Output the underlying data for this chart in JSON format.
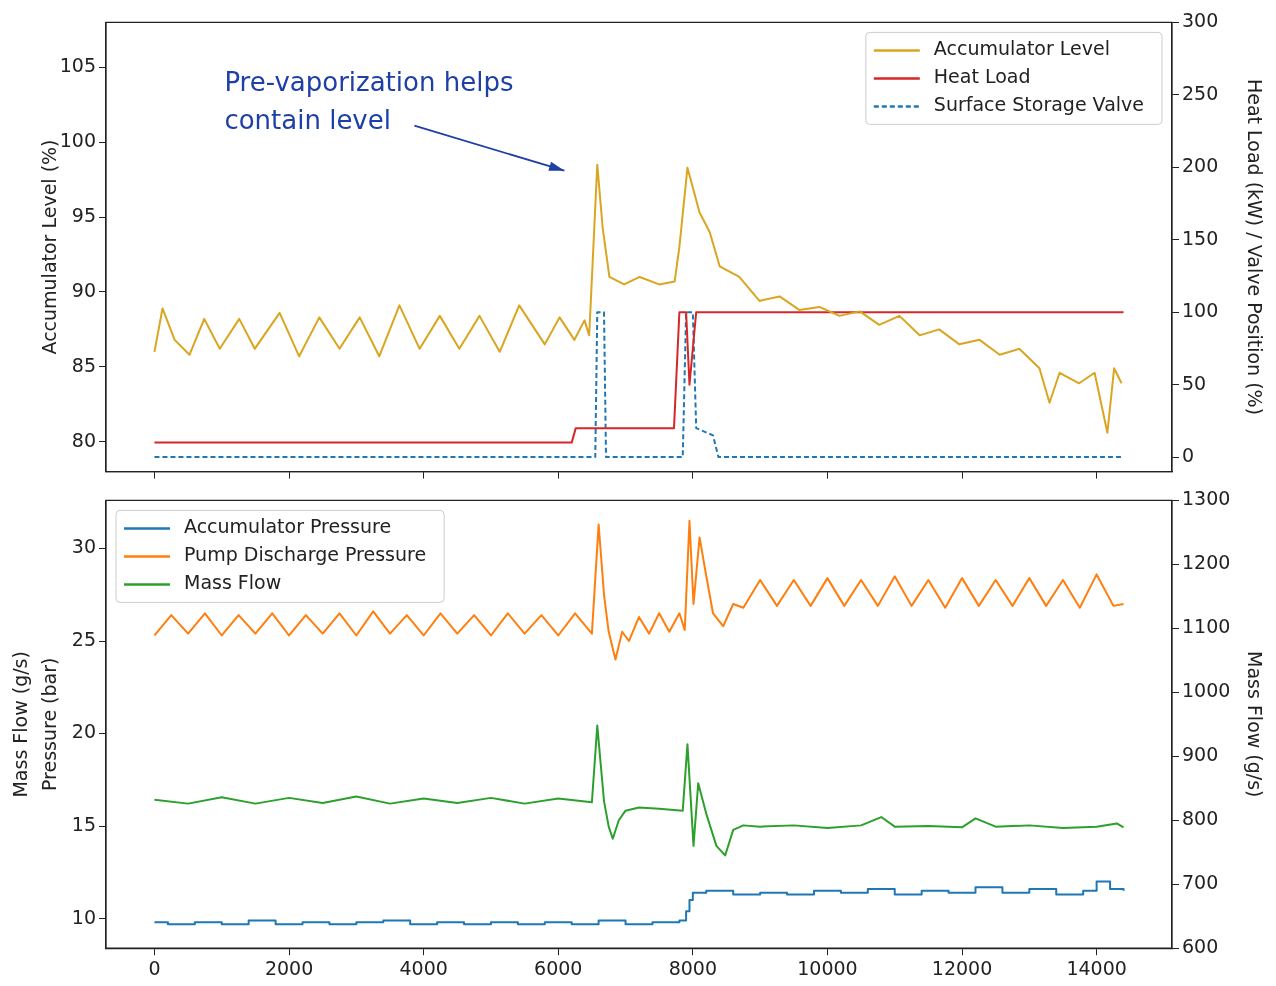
{
  "chart_data": [
    {
      "type": "line",
      "ylabel": "Accumulator Level (%)",
      "y2label": "Heat Load (kW) / Valve Position (%)",
      "xlim": [
        -720,
        15120
      ],
      "xticks": [
        0,
        2000,
        4000,
        6000,
        8000,
        10000,
        12000,
        14000
      ],
      "ylim": [
        78,
        108
      ],
      "yticks": [
        80,
        85,
        90,
        95,
        100,
        105
      ],
      "y2lim": [
        -10,
        300
      ],
      "y2ticks": [
        0,
        50,
        100,
        150,
        200,
        250,
        300
      ],
      "tick_labels": "y",
      "legend": "top right",
      "grid": false,
      "annotations": [
        "Pre-vaporization helps\ncontain level"
      ],
      "series": [
        {
          "name": "Accumulator Level",
          "color": "#daa520",
          "line_style": "solid",
          "x": [
            0,
            120,
            300,
            520,
            740,
            970,
            1260,
            1490,
            1860,
            2150,
            2450,
            2750,
            3050,
            3340,
            3640,
            3940,
            4240,
            4530,
            4830,
            5130,
            5420,
            5800,
            6020,
            6240,
            6390,
            6460,
            6580,
            6660,
            6760,
            6980,
            7210,
            7500,
            7730,
            7800,
            7920,
            8100,
            8250,
            8400,
            8690,
            8990,
            9290,
            9580,
            9880,
            10180,
            10480,
            10770,
            11070,
            11370,
            11660,
            11960,
            12260,
            12560,
            12850,
            13150,
            13300,
            13450,
            13740,
            13970,
            14160,
            14260,
            14370
          ],
          "values": [
            86,
            88.9,
            86.8,
            85.8,
            88.2,
            86.2,
            88.2,
            86.2,
            88.6,
            85.7,
            88.3,
            86.2,
            88.3,
            85.7,
            89.1,
            86.2,
            88.4,
            86.2,
            88.4,
            86,
            89.1,
            86.5,
            88.3,
            86.8,
            88.1,
            87.1,
            98.5,
            94.3,
            91,
            90.5,
            91,
            90.5,
            90.7,
            93,
            98.3,
            95.3,
            94,
            91.7,
            91,
            89.4,
            89.7,
            88.8,
            89,
            88.4,
            88.7,
            87.8,
            88.4,
            87.1,
            87.5,
            86.5,
            86.8,
            85.8,
            86.2,
            84.9,
            82.6,
            84.6,
            83.9,
            84.6,
            80.6,
            84.9,
            83.9
          ]
        },
        {
          "name": "Heat Load",
          "color": "#d62728",
          "line_style": "solid",
          "axis": "y2",
          "x": [
            0,
            6200,
            6260,
            7720,
            7800,
            7900,
            7950,
            8050,
            14400
          ],
          "values": [
            10,
            10,
            20,
            20,
            100,
            100,
            50,
            100,
            100
          ]
        },
        {
          "name": "Surface Storage Valve",
          "color": "#1f77b4",
          "line_style": "dashed",
          "axis": "y2",
          "x": [
            0,
            6550,
            6580,
            6680,
            6710,
            7850,
            7900,
            8000,
            8050,
            8300,
            8380,
            14400
          ],
          "values": [
            0,
            0,
            100,
            100,
            0,
            0,
            100,
            100,
            20,
            15,
            0,
            0
          ]
        }
      ]
    },
    {
      "type": "line",
      "ylabel": "Pressure (bar)",
      "y2label": "Mass Flow (g/s)",
      "y3label": "Mass Flow (g/s)",
      "xlim": [
        -720,
        15120
      ],
      "xticks": [
        0,
        2000,
        4000,
        6000,
        8000,
        10000,
        12000,
        14000
      ],
      "ylim": [
        8.4,
        32.6
      ],
      "yticks": [
        10,
        15,
        20,
        25,
        30
      ],
      "y2lim": [
        600,
        1300
      ],
      "y2ticks": [
        600,
        700,
        800,
        900,
        1000,
        1100,
        1200,
        1300
      ],
      "legend": "top left",
      "grid": false,
      "series": [
        {
          "name": "Accumulator Pressure",
          "color": "#1f77b4",
          "type": "step",
          "line_style": "solid",
          "x": [
            0,
            200,
            600,
            1000,
            1400,
            1800,
            2200,
            2600,
            3000,
            3400,
            3800,
            4200,
            4600,
            5000,
            5400,
            5800,
            6200,
            6600,
            7000,
            7400,
            7800,
            7900,
            7950,
            8000,
            8200,
            8600,
            9000,
            9400,
            9800,
            10200,
            10600,
            11000,
            11400,
            11800,
            12200,
            12600,
            13000,
            13400,
            13800,
            14000,
            14200,
            14400
          ],
          "values": [
            9.8,
            9.7,
            9.8,
            9.7,
            9.9,
            9.7,
            9.8,
            9.7,
            9.8,
            9.9,
            9.7,
            9.8,
            9.7,
            9.8,
            9.7,
            9.8,
            9.7,
            9.9,
            9.7,
            9.8,
            9.9,
            10.4,
            11,
            11.4,
            11.5,
            11.3,
            11.4,
            11.3,
            11.5,
            11.4,
            11.6,
            11.3,
            11.5,
            11.4,
            11.7,
            11.4,
            11.6,
            11.3,
            11.5,
            12,
            11.6,
            11.5
          ]
        },
        {
          "name": "Pump Discharge Pressure",
          "color": "#ff7f0e",
          "line_style": "solid",
          "x": [
            0,
            250,
            500,
            750,
            1000,
            1250,
            1500,
            1750,
            2000,
            2250,
            2500,
            2750,
            3000,
            3250,
            3500,
            3750,
            4000,
            4250,
            4500,
            4750,
            5000,
            5250,
            5500,
            5750,
            6000,
            6250,
            6500,
            6600,
            6680,
            6750,
            6850,
            6950,
            7050,
            7200,
            7350,
            7500,
            7650,
            7800,
            7880,
            7950,
            8010,
            8100,
            8200,
            8300,
            8450,
            8600,
            8750,
            9000,
            9250,
            9500,
            9750,
            10000,
            10250,
            10500,
            10750,
            11000,
            11250,
            11500,
            11750,
            12000,
            12250,
            12500,
            12750,
            13000,
            13250,
            13500,
            13750,
            14000,
            14250,
            14400
          ],
          "values": [
            25.3,
            26.4,
            25.4,
            26.5,
            25.3,
            26.4,
            25.4,
            26.5,
            25.3,
            26.4,
            25.4,
            26.5,
            25.3,
            26.6,
            25.4,
            26.4,
            25.3,
            26.5,
            25.4,
            26.4,
            25.3,
            26.5,
            25.4,
            26.4,
            25.3,
            26.5,
            25.4,
            31.3,
            27.5,
            25.5,
            24,
            25.5,
            25,
            26.3,
            25.4,
            26.5,
            25.5,
            26.5,
            25.6,
            31.5,
            27,
            30.6,
            28.5,
            26.5,
            25.8,
            27,
            26.8,
            28.3,
            26.9,
            28.3,
            26.9,
            28.4,
            26.9,
            28.3,
            26.9,
            28.5,
            26.9,
            28.3,
            26.8,
            28.4,
            26.9,
            28.3,
            26.9,
            28.4,
            26.9,
            28.3,
            26.8,
            28.6,
            26.9,
            27
          ]
        },
        {
          "name": "Mass Flow",
          "color": "#2ca02c",
          "line_style": "solid",
          "axis": "y2",
          "x": [
            0,
            500,
            1000,
            1500,
            2000,
            2500,
            3000,
            3500,
            4000,
            4500,
            5000,
            5500,
            6000,
            6500,
            6580,
            6680,
            6750,
            6810,
            6900,
            7000,
            7200,
            7500,
            7850,
            7920,
            8010,
            8080,
            8200,
            8350,
            8480,
            8600,
            8750,
            9000,
            9500,
            10000,
            10500,
            10800,
            11000,
            11500,
            12000,
            12200,
            12500,
            13000,
            13500,
            14000,
            14300,
            14400
          ],
          "values": [
            832,
            826,
            836,
            826,
            835,
            827,
            837,
            826,
            834,
            827,
            835,
            826,
            834,
            828,
            948,
            830,
            790,
            771,
            800,
            815,
            820,
            818,
            815,
            919,
            760,
            858,
            810,
            760,
            745,
            785,
            792,
            790,
            792,
            788,
            792,
            805,
            790,
            791,
            789,
            803,
            790,
            792,
            788,
            790,
            795,
            789
          ]
        }
      ]
    }
  ]
}
